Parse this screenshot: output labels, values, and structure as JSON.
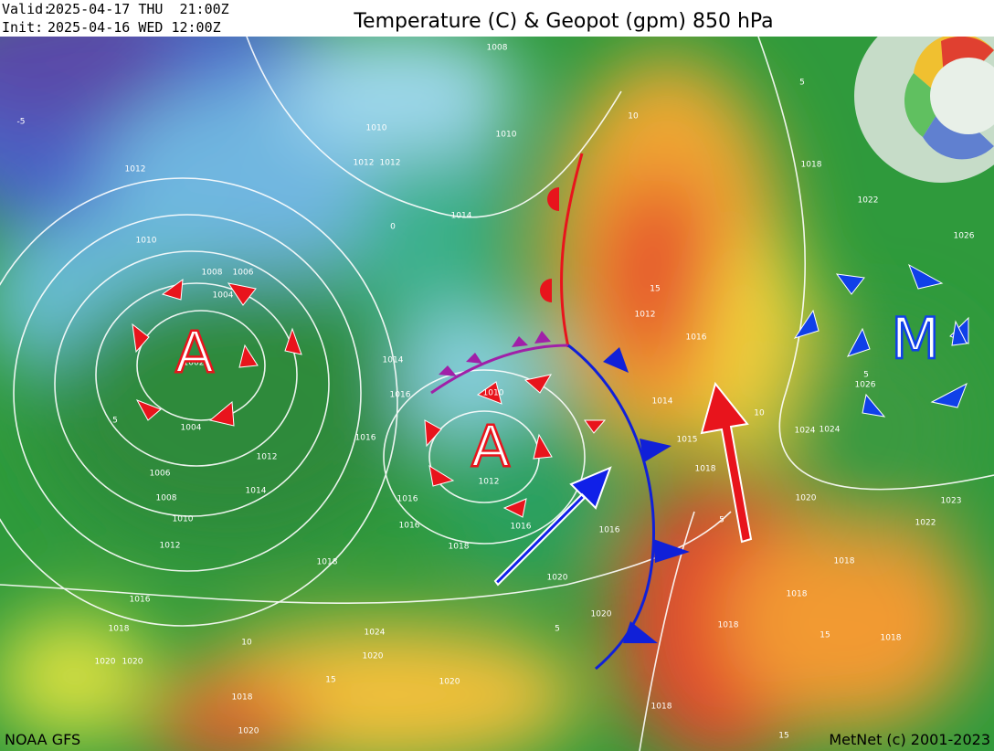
{
  "header": {
    "valid_label": "Valid:",
    "valid": "2025-04-17 THU  21:00Z",
    "init_label": "Init:",
    "init": "2025-04-16 WED 12:00Z",
    "title": "Temperature (C) & Geopot (gpm) 850 hPa"
  },
  "pressure_centers": [
    "A",
    "A",
    "M"
  ],
  "contour_labels": [
    "1008",
    "1010",
    "1010",
    "1012",
    "1012",
    "1012",
    "1010",
    "1008",
    "1006",
    "1004",
    "1002",
    "1004",
    "1006",
    "1008",
    "1010",
    "1012",
    "1014",
    "1012",
    "1016",
    "1018",
    "1020",
    "1020",
    "1014",
    "1014",
    "1016",
    "1016",
    "1010",
    "1012",
    "1016",
    "1016",
    "1018",
    "1018",
    "1016",
    "1016",
    "1020",
    "1020",
    "1012",
    "1016",
    "1014",
    "1015",
    "1018",
    "1018",
    "1022",
    "1026",
    "1026",
    "1024",
    "1024",
    "1020",
    "1022",
    "1018",
    "1018",
    "1018",
    "1018",
    "1018",
    "1018",
    "1020",
    "1024",
    "1020",
    "1020",
    "1023",
    "10",
    "15",
    "10",
    "15",
    "5",
    "15",
    "15",
    "5",
    "-5",
    "5",
    "5",
    "0",
    "10",
    "5"
  ],
  "footer": {
    "model": "NOAA GFS",
    "copyright": "MetNet (c) 2001-2023"
  }
}
